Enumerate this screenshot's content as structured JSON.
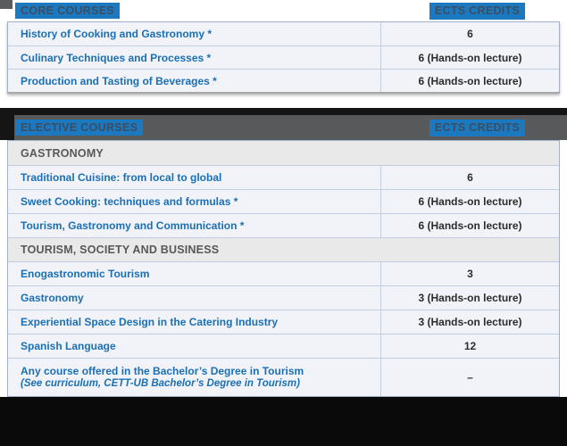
{
  "table1": {
    "header": {
      "course_label": "CORE COURSES",
      "credits_label": "ECTS CREDITS"
    },
    "rows": [
      {
        "type": "course",
        "name": "History of Cooking and Gastronomy *",
        "credits": "6"
      },
      {
        "type": "course",
        "name": "Culinary Techniques and Processes *",
        "credits": "6 (Hands-on lecture)"
      },
      {
        "type": "course",
        "name": "Production and Tasting of Beverages *",
        "credits": "6 (Hands-on lecture)"
      }
    ]
  },
  "table2": {
    "header": {
      "course_label": "ELECTIVE COURSES",
      "credits_label": "ECTS CREDITS"
    },
    "rows": [
      {
        "type": "section",
        "name": "GASTRONOMY"
      },
      {
        "type": "course",
        "name": "Traditional Cuisine: from local to global",
        "credits": "6"
      },
      {
        "type": "course",
        "name": "Sweet Cooking: techniques and formulas *",
        "credits": "6 (Hands-on lecture)"
      },
      {
        "type": "course",
        "name": "Tourism, Gastronomy and Communication *",
        "credits": "6 (Hands-on lecture)"
      },
      {
        "type": "section",
        "name": "TOURISM, SOCIETY AND BUSINESS"
      },
      {
        "type": "course",
        "name": "Enogastronomic Tourism",
        "credits": "3"
      },
      {
        "type": "course",
        "name": "Gastronomy",
        "credits": "3 (Hands-on lecture)"
      },
      {
        "type": "course",
        "name": "Experiential Space Design in the Catering Industry",
        "credits": "3 (Hands-on lecture)"
      },
      {
        "type": "course",
        "name": "Spanish Language",
        "credits": "12"
      },
      {
        "type": "course",
        "name": "Any course offered in the Bachelor’s Degree in Tourism",
        "note": "(See curriculum, CETT-UB Bachelor’s Degree in Tourism)",
        "credits": "–"
      }
    ]
  },
  "colors": {
    "header_highlight_blue": "#1d79bf",
    "course_text_blue": "#1a6fb5",
    "band_gray": "#58595b",
    "row_bg": "#f1f3f8",
    "section_bg": "#e9e9ea",
    "bottom_bar_black": "#0a0a0a"
  }
}
